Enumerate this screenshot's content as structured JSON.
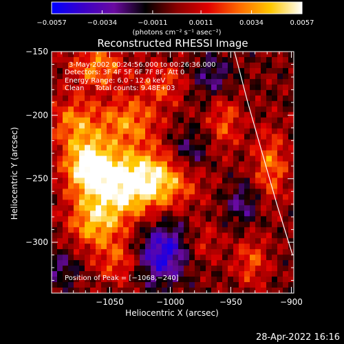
{
  "chart_data": {
    "type": "heatmap",
    "title": "Reconstructed RHESSI Image",
    "xlabel": "Heliocentric X (arcsec)",
    "ylabel": "Heliocentric Y (arcsec)",
    "xlim": [
      -1098,
      -898
    ],
    "ylim": [
      -340,
      -150
    ],
    "x_ticks": [
      {
        "value": -1050,
        "label": "−1050"
      },
      {
        "value": -1000,
        "label": "−1000"
      },
      {
        "value": -950,
        "label": "−950"
      },
      {
        "value": -900,
        "label": "−900"
      }
    ],
    "y_ticks": [
      {
        "value": -150,
        "label": "−150"
      },
      {
        "value": -200,
        "label": "−200"
      },
      {
        "value": -250,
        "label": "−250"
      },
      {
        "value": -300,
        "label": "−300"
      }
    ],
    "colorbar": {
      "min": -0.0057,
      "max": 0.0057,
      "tick_values": [
        -0.0057,
        -0.0034,
        -0.0011,
        0.0011,
        0.0034,
        0.0057
      ],
      "tick_labels": [
        "−0.0057",
        "−0.0034",
        "−0.0011",
        "0.0011",
        "0.0034",
        "0.0057"
      ],
      "unit_label": "(photons cm⁻² s⁻¹ asec⁻²)",
      "colors": [
        "#0000ff",
        "#3a00c8",
        "#6a0aa0",
        "#000000",
        "#8a0000",
        "#e00000",
        "#ff6a00",
        "#ffc800",
        "#ffffff"
      ]
    },
    "annotations": [
      "3-May-2002 00:24:56.000 to 00:26:36.000",
      "Detectors: 3F 4F 5F 6F 7F 8F, Att 0",
      "Energy Range: 6.0 - 12.0 keV",
      "Clean     Total counts: 9.48E+03"
    ],
    "peak_label": "Position of Peak = [−1068,−240]",
    "peak": {
      "x": -1068,
      "y": -240
    },
    "limb": [
      [
        -947,
        -150
      ],
      [
        -936,
        -190
      ],
      [
        -924,
        -230
      ],
      [
        -912,
        -270
      ],
      [
        -899,
        -310
      ]
    ],
    "image_blobs": [
      {
        "x": -1068,
        "y": -240,
        "sx": 14,
        "sy": 16,
        "amp": 1.0
      },
      {
        "x": -1040,
        "y": -255,
        "sx": 20,
        "sy": 18,
        "amp": 0.85
      },
      {
        "x": -1008,
        "y": -250,
        "sx": 22,
        "sy": 16,
        "amp": 0.75
      },
      {
        "x": -1062,
        "y": -285,
        "sx": 16,
        "sy": 14,
        "amp": 0.7
      },
      {
        "x": -1080,
        "y": -205,
        "sx": 14,
        "sy": 14,
        "amp": 0.55
      },
      {
        "x": -1060,
        "y": -162,
        "sx": 16,
        "sy": 12,
        "amp": 0.6
      },
      {
        "x": -1035,
        "y": -205,
        "sx": 18,
        "sy": 14,
        "amp": 0.6
      },
      {
        "x": -1005,
        "y": -175,
        "sx": 14,
        "sy": 12,
        "amp": 0.4
      },
      {
        "x": -1042,
        "y": -315,
        "sx": 14,
        "sy": 12,
        "amp": 0.45
      },
      {
        "x": -955,
        "y": -205,
        "sx": 10,
        "sy": 16,
        "amp": 0.45
      },
      {
        "x": -917,
        "y": -240,
        "sx": 10,
        "sy": 20,
        "amp": 0.55
      },
      {
        "x": -933,
        "y": -315,
        "sx": 10,
        "sy": 14,
        "amp": 0.45
      },
      {
        "x": -975,
        "y": -300,
        "sx": 12,
        "sy": 12,
        "amp": 0.35
      },
      {
        "x": -985,
        "y": -230,
        "sx": 12,
        "sy": 12,
        "amp": -0.45
      },
      {
        "x": -1010,
        "y": -315,
        "sx": 14,
        "sy": 14,
        "amp": -0.55
      },
      {
        "x": -1000,
        "y": -300,
        "sx": 16,
        "sy": 14,
        "amp": -0.45
      },
      {
        "x": -965,
        "y": -170,
        "sx": 12,
        "sy": 12,
        "amp": -0.4
      },
      {
        "x": -940,
        "y": -270,
        "sx": 10,
        "sy": 12,
        "amp": -0.4
      },
      {
        "x": -1090,
        "y": -320,
        "sx": 10,
        "sy": 10,
        "amp": -0.35
      }
    ]
  },
  "footer": {
    "timestamp": "28-Apr-2022 16:16"
  }
}
